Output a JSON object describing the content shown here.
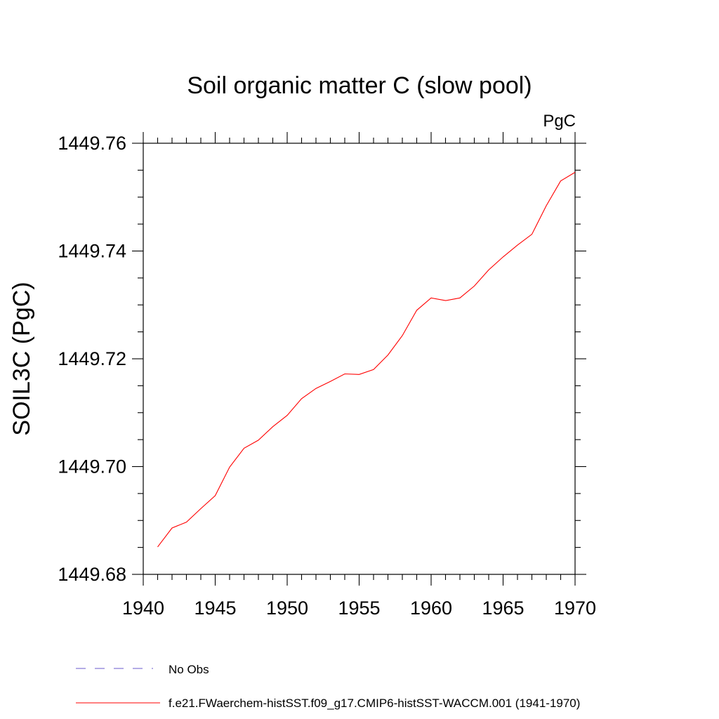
{
  "chart_data": {
    "type": "line",
    "title": "Soil organic matter C (slow pool)",
    "units_label": "PgC",
    "xlabel": "",
    "ylabel": "SOIL3C  (PgC)",
    "xlim": [
      1940,
      1970
    ],
    "ylim": [
      1449.68,
      1449.76
    ],
    "xticks": [
      1940,
      1945,
      1950,
      1955,
      1960,
      1965,
      1970
    ],
    "xtick_labels": [
      "1940",
      "1945",
      "1950",
      "1955",
      "1960",
      "1965",
      "1970"
    ],
    "yticks": [
      1449.68,
      1449.7,
      1449.72,
      1449.74,
      1449.76
    ],
    "ytick_labels": [
      "1449.68",
      "1449.70",
      "1449.72",
      "1449.74",
      "1449.76"
    ],
    "grid": false,
    "legend_position": "bottom",
    "series": [
      {
        "name": "f.e21.FWaerchem-histSST.f09_g17.CMIP6-histSST-WACCM.001 (1941-1970)",
        "color": "#ff0000",
        "style": "solid",
        "x": [
          1941,
          1942,
          1943,
          1944,
          1945,
          1946,
          1947,
          1948,
          1949,
          1950,
          1951,
          1952,
          1953,
          1954,
          1955,
          1956,
          1957,
          1958,
          1959,
          1960,
          1961,
          1962,
          1963,
          1964,
          1965,
          1966,
          1967,
          1968,
          1969,
          1970
        ],
        "values": [
          1449.6851,
          1449.6886,
          1449.6897,
          1449.6922,
          1449.6946,
          1449.6999,
          1449.7034,
          1449.7049,
          1449.7074,
          1449.7095,
          1449.7126,
          1449.7145,
          1449.7158,
          1449.7172,
          1449.7171,
          1449.718,
          1449.7207,
          1449.7243,
          1449.729,
          1449.7313,
          1449.7308,
          1449.7313,
          1449.7335,
          1449.7365,
          1449.7389,
          1449.7411,
          1449.7431,
          1449.7484,
          1449.753,
          1449.7546
        ]
      },
      {
        "name": "No Obs",
        "color": "#6a5acd",
        "style": "dashed",
        "x": [],
        "values": []
      }
    ]
  }
}
